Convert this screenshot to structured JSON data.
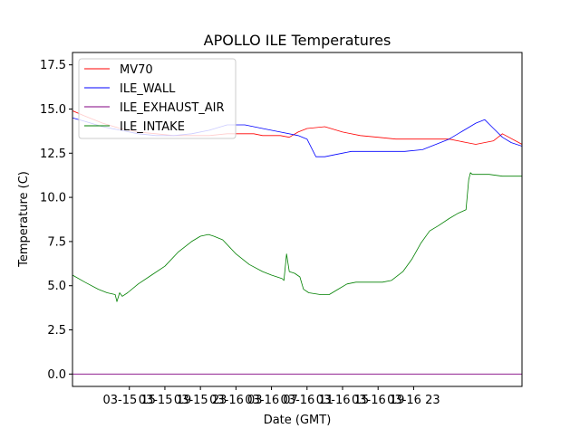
{
  "chart_data": {
    "type": "line",
    "title": "APOLLO ILE Temperatures",
    "xlabel": "Date (GMT)",
    "ylabel": "Temperature (C)",
    "ylim": [
      -0.7,
      18.2
    ],
    "xlim_hours": [
      8.6,
      59.2
    ],
    "grid": false,
    "legend_position": "upper-left",
    "y_ticks": [
      0.0,
      2.5,
      5.0,
      7.5,
      10.0,
      12.5,
      15.0,
      17.5
    ],
    "y_tick_labels": [
      "0.0",
      "2.5",
      "5.0",
      "7.5",
      "10.0",
      "12.5",
      "15.0",
      "17.5"
    ],
    "x_ticks_hours": [
      15,
      19,
      23,
      27,
      31,
      35,
      39,
      43,
      47
    ],
    "x_tick_labels": [
      "03-15 15",
      "03-15 19",
      "03-15 23",
      "03-16 03",
      "03-16 07",
      "03-16 11",
      "03-16 15",
      "03-16 19",
      "03-16 23"
    ],
    "series": [
      {
        "name": "MV70",
        "color": "#ff0000",
        "x": [
          8.6,
          10,
          12,
          14,
          16,
          18,
          20,
          22,
          24,
          26,
          28,
          29,
          30,
          32,
          33,
          34,
          35,
          37,
          39,
          41,
          43,
          45,
          47,
          48,
          49,
          51,
          53,
          54,
          56,
          57,
          59.2
        ],
        "y": [
          14.9,
          14.6,
          14.2,
          13.9,
          13.7,
          13.6,
          13.5,
          13.5,
          13.5,
          13.6,
          13.6,
          13.6,
          13.5,
          13.5,
          13.4,
          13.7,
          13.9,
          14.0,
          13.7,
          13.5,
          13.4,
          13.3,
          13.3,
          13.3,
          13.3,
          13.3,
          13.1,
          13.0,
          13.2,
          13.6,
          13.0
        ]
      },
      {
        "name": "ILE_WALL",
        "color": "#0000ff",
        "x": [
          8.6,
          10,
          12,
          14,
          16,
          18,
          20,
          22,
          24,
          26,
          27,
          28,
          30,
          32,
          34,
          35,
          36,
          37,
          38,
          40,
          42,
          44,
          46,
          48,
          50,
          51,
          52,
          53,
          54,
          55,
          56,
          57,
          58,
          59.2
        ],
        "y": [
          14.5,
          14.3,
          14.0,
          13.8,
          13.6,
          13.5,
          13.5,
          13.6,
          13.8,
          14.1,
          14.1,
          14.1,
          13.9,
          13.7,
          13.5,
          13.3,
          12.3,
          12.3,
          12.4,
          12.6,
          12.6,
          12.6,
          12.6,
          12.7,
          13.1,
          13.3,
          13.6,
          13.9,
          14.2,
          14.4,
          13.9,
          13.4,
          13.1,
          12.9
        ]
      },
      {
        "name": "ILE_EXHAUST_AIR",
        "color": "#800080",
        "x": [
          8.6,
          59.2
        ],
        "y": [
          0.0,
          0.0
        ]
      },
      {
        "name": "ILE_INTAKE",
        "color": "#008000",
        "x": [
          8.6,
          10,
          11.5,
          12.5,
          13.4,
          13.6,
          13.9,
          14.2,
          14.8,
          16,
          17.5,
          19,
          20.5,
          22,
          23,
          23.9,
          24.5,
          25.5,
          27,
          28.5,
          30,
          31,
          32.2,
          32.4,
          32.7,
          33,
          33.6,
          34.2,
          34.6,
          35.2,
          36.5,
          37.5,
          38.5,
          39.5,
          40.5,
          42,
          43.5,
          44.5,
          45.8,
          46.8,
          47.8,
          48.8,
          49.8,
          51,
          52,
          52.9,
          53.2,
          53.4,
          53.6,
          54,
          55.5,
          57,
          59.2
        ],
        "y": [
          5.6,
          5.2,
          4.8,
          4.6,
          4.5,
          4.1,
          4.6,
          4.4,
          4.6,
          5.1,
          5.6,
          6.1,
          6.9,
          7.5,
          7.8,
          7.9,
          7.8,
          7.6,
          6.8,
          6.2,
          5.8,
          5.6,
          5.4,
          5.3,
          6.8,
          5.8,
          5.7,
          5.5,
          4.8,
          4.6,
          4.5,
          4.5,
          4.8,
          5.1,
          5.2,
          5.2,
          5.2,
          5.3,
          5.8,
          6.5,
          7.4,
          8.1,
          8.4,
          8.8,
          9.1,
          9.3,
          11.0,
          11.4,
          11.3,
          11.3,
          11.3,
          11.2,
          11.2
        ]
      }
    ]
  }
}
